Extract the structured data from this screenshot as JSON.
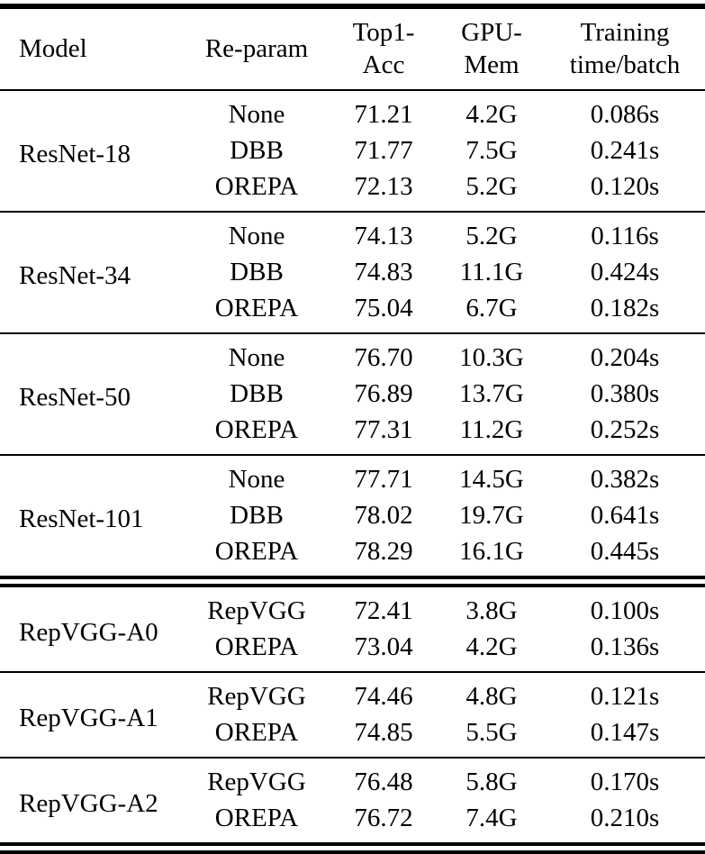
{
  "columns": {
    "model": {
      "label": "Model"
    },
    "reparam": {
      "label": "Re-param"
    },
    "top1": {
      "label": "Top1-\nAcc"
    },
    "gpumem": {
      "label": "GPU-\nMem"
    },
    "time": {
      "label": "Training\ntime/batch"
    }
  },
  "groups": [
    {
      "model": "ResNet-18",
      "rows": [
        {
          "reparam": "None",
          "top1": "71.21",
          "gpumem": "4.2G",
          "time": "0.086s"
        },
        {
          "reparam": "DBB",
          "top1": "71.77",
          "gpumem": "7.5G",
          "time": "0.241s"
        },
        {
          "reparam": "OREPA",
          "top1": "72.13",
          "gpumem": "5.2G",
          "time": "0.120s"
        }
      ]
    },
    {
      "model": "ResNet-34",
      "rows": [
        {
          "reparam": "None",
          "top1": "74.13",
          "gpumem": "5.2G",
          "time": "0.116s"
        },
        {
          "reparam": "DBB",
          "top1": "74.83",
          "gpumem": "11.1G",
          "time": "0.424s"
        },
        {
          "reparam": "OREPA",
          "top1": "75.04",
          "gpumem": "6.7G",
          "time": "0.182s"
        }
      ]
    },
    {
      "model": "ResNet-50",
      "rows": [
        {
          "reparam": "None",
          "top1": "76.70",
          "gpumem": "10.3G",
          "time": "0.204s"
        },
        {
          "reparam": "DBB",
          "top1": "76.89",
          "gpumem": "13.7G",
          "time": "0.380s"
        },
        {
          "reparam": "OREPA",
          "top1": "77.31",
          "gpumem": "11.2G",
          "time": "0.252s"
        }
      ]
    },
    {
      "model": "ResNet-101",
      "rows": [
        {
          "reparam": "None",
          "top1": "77.71",
          "gpumem": "14.5G",
          "time": "0.382s"
        },
        {
          "reparam": "DBB",
          "top1": "78.02",
          "gpumem": "19.7G",
          "time": "0.641s"
        },
        {
          "reparam": "OREPA",
          "top1": "78.29",
          "gpumem": "16.1G",
          "time": "0.445s"
        }
      ]
    },
    {
      "model": "RepVGG-A0",
      "rows": [
        {
          "reparam": "RepVGG",
          "top1": "72.41",
          "gpumem": "3.8G",
          "time": "0.100s"
        },
        {
          "reparam": "OREPA",
          "top1": "73.04",
          "gpumem": "4.2G",
          "time": "0.136s"
        }
      ]
    },
    {
      "model": "RepVGG-A1",
      "rows": [
        {
          "reparam": "RepVGG",
          "top1": "74.46",
          "gpumem": "4.8G",
          "time": "0.121s"
        },
        {
          "reparam": "OREPA",
          "top1": "74.85",
          "gpumem": "5.5G",
          "time": "0.147s"
        }
      ]
    },
    {
      "model": "RepVGG-A2",
      "rows": [
        {
          "reparam": "RepVGG",
          "top1": "76.48",
          "gpumem": "5.8G",
          "time": "0.170s"
        },
        {
          "reparam": "OREPA",
          "top1": "76.72",
          "gpumem": "7.4G",
          "time": "0.210s"
        }
      ]
    }
  ],
  "rules": {
    "top": "thick-single",
    "after_header": "single",
    "between_groups": "single",
    "after_resnet101": "double",
    "bottom": "double"
  }
}
